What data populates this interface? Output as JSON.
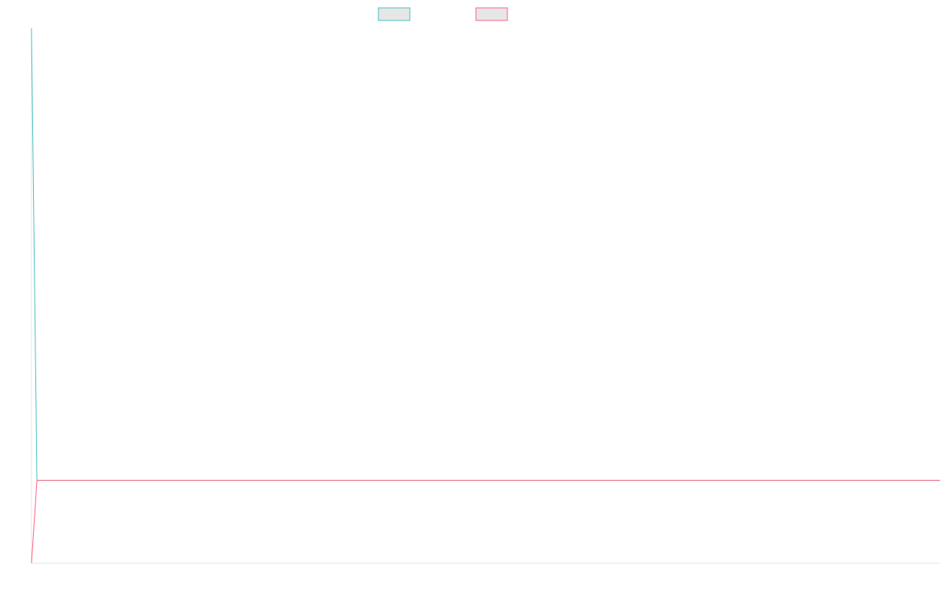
{
  "chart_data": {
    "type": "line",
    "title": "",
    "xlabel": "",
    "ylabel": "",
    "legend_position": "top-center",
    "grid": false,
    "x": [
      0,
      1,
      2
    ],
    "series": [
      {
        "name": "",
        "color": "#4bc0c0",
        "legend_fill": "#e6e6e6",
        "values": [
          100,
          15.5,
          15.5
        ]
      },
      {
        "name": "",
        "color": "#ff6384",
        "legend_fill": "#e6e6e6",
        "values": [
          0,
          15.5,
          15.5
        ]
      }
    ],
    "xlim": [
      0,
      165
    ],
    "ylim": [
      0,
      100
    ]
  }
}
